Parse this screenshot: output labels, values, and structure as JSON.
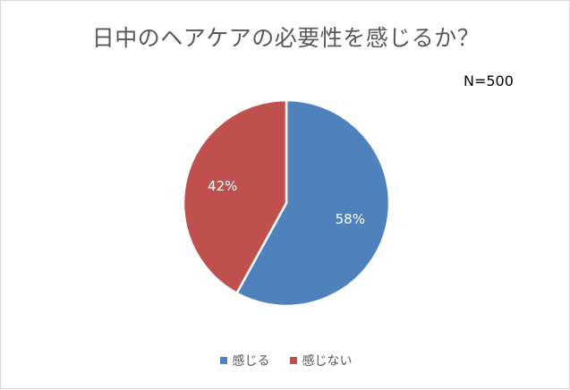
{
  "chart_data": {
    "type": "pie",
    "title": "日中のヘアケアの必要性を感じるか？",
    "annotation": "N=500",
    "slices": [
      {
        "label": "感じる",
        "value": 58,
        "display": "58%",
        "color": "#4F81BD"
      },
      {
        "label": "感じない",
        "value": 42,
        "display": "42%",
        "color": "#C0504D"
      }
    ],
    "legend_position": "bottom",
    "grid": false
  }
}
